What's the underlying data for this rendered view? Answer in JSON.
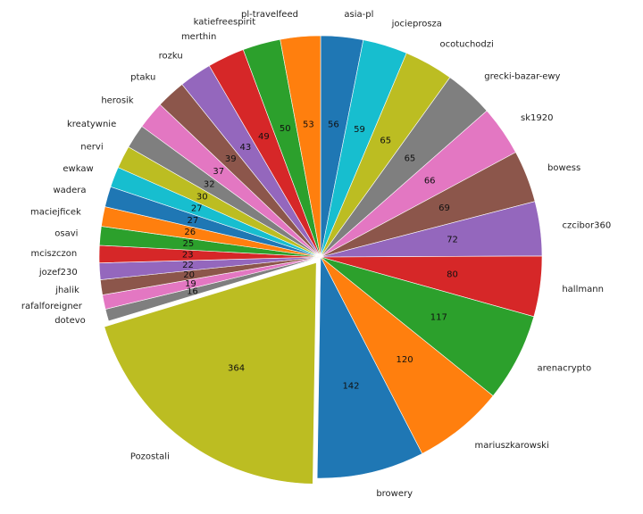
{
  "chart_data": {
    "type": "pie",
    "title": "",
    "categories": [
      "asia-pl",
      "jocieprosza",
      "ocotuchodzi",
      "grecki-bazar-ewy",
      "sk1920",
      "bowess",
      "czcibor360",
      "hallmann",
      "arenacrypto",
      "mariuszkarowski",
      "browery",
      "Pozostali",
      "dotevo",
      "rafalforeigner",
      "jhalik",
      "jozef230",
      "mciszczon",
      "osavi",
      "maciejficek",
      "wadera",
      "ewkaw",
      "nervi",
      "kreatywnie",
      "herosik",
      "ptaku",
      "rozku",
      "merthin",
      "katiefreespirit",
      "pl-travelfeed"
    ],
    "values": [
      56,
      59,
      65,
      65,
      66,
      69,
      72,
      80,
      117,
      120,
      142,
      364,
      16,
      19,
      20,
      22,
      23,
      25,
      26,
      27,
      27,
      30,
      32,
      37,
      39,
      43,
      49,
      50,
      53
    ],
    "value_labels": [
      "56",
      "59",
      "65",
      "65",
      "66",
      "69",
      "72",
      "80",
      "117",
      "120",
      "142",
      "364",
      "16",
      "19",
      "20",
      "22",
      "23",
      "25",
      "26",
      "27",
      "27",
      "30",
      "32",
      "37",
      "39",
      "43",
      "49",
      "50",
      "53"
    ],
    "colors": [
      "#1f77b4",
      "#17becf",
      "#bcbd22",
      "#7f7f7f",
      "#e377c2",
      "#8c564b",
      "#9467bd",
      "#d62728",
      "#2ca02c",
      "#ff7f0e",
      "#1f77b4",
      "#bcbd22",
      "#7f7f7f",
      "#e377c2",
      "#8c564b",
      "#9467bd",
      "#d62728",
      "#2ca02c",
      "#ff7f0e",
      "#1f77b4",
      "#17becf",
      "#bcbd22",
      "#7f7f7f",
      "#e377c2",
      "#8c564b",
      "#9467bd",
      "#d62728",
      "#2ca02c",
      "#ff7f0e"
    ],
    "exploded": [
      "Pozostali"
    ],
    "start": "top, clockwise",
    "legend": "none"
  }
}
